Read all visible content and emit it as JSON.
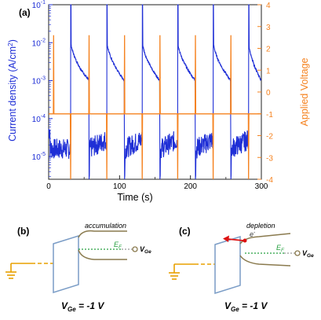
{
  "chart_data": {
    "type": "line",
    "panel_label": "(a)",
    "xlabel": "Time (s)",
    "ylabel_left": "Current density (A/cm",
    "ylabel_left_sup": "2",
    "ylabel_left_close": ")",
    "ylabel_right": "Applied Voltage",
    "xlim": [
      0,
      300
    ],
    "ylim_left_log10": [
      -5.6,
      -1
    ],
    "ylim_right": [
      -4,
      4
    ],
    "y_left_scale": "log",
    "x_ticks": [
      "0",
      "100",
      "200",
      "300"
    ],
    "x_tick_values": [
      0,
      100,
      200,
      300
    ],
    "y_left_tick_exponents": [
      "-1",
      "-2",
      "-3",
      "-4",
      "-5"
    ],
    "y_left_tick_base": "10",
    "y_right_ticks": [
      "4",
      "3",
      "2",
      "1",
      "0",
      "-1",
      "-2",
      "-3",
      "-4"
    ],
    "colors": {
      "current": "#1f2fd6",
      "voltage": "#f5821f"
    },
    "voltage_pulse_times_positive": [
      7,
      57,
      107,
      157,
      207,
      257
    ],
    "voltage_pulse_times_negative": [
      31,
      82,
      132,
      182,
      232,
      282
    ],
    "voltage_pulse_peak": 2.6,
    "voltage_pulse_trough": -4,
    "voltage_baseline": -1,
    "current_cycle_period": 25.5,
    "current_low_level_log10": -4.8,
    "current_spike_max_log10": -1,
    "current_decay_start_log10": -1.9,
    "current_decay_end_log10": -3.0
  },
  "panel_b": {
    "label": "(b)",
    "state": "accumulation",
    "fermi_label": "E",
    "fermi_sub": "F",
    "vge_label": "V",
    "vge_sub": "Ge",
    "bias_label": "V",
    "bias_sub": "Ge",
    "bias_value": " = -1 V"
  },
  "panel_c": {
    "label": "(c)",
    "state": "depletion",
    "electron_label": "e",
    "electron_sup": "-",
    "fermi_label": "E",
    "fermi_sub": "F",
    "vge_label": "V",
    "vge_sub": "Ge",
    "bias_label": "V",
    "bias_sub": "Ge",
    "bias_value": " = -1 V"
  }
}
